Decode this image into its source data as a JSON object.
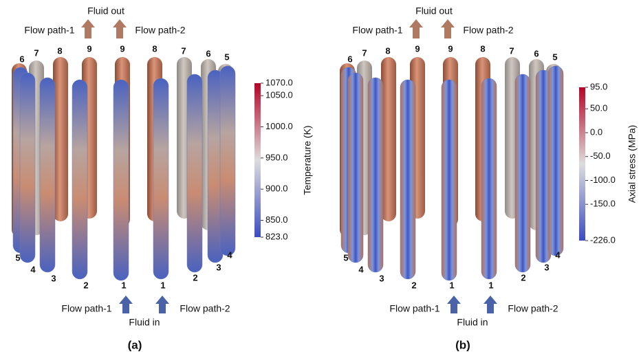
{
  "panels": [
    {
      "label": "(a)",
      "top": {
        "fluid": "Fluid out",
        "path1": "Flow path-1",
        "path2": "Flow path-2"
      },
      "bottom": {
        "fluid": "Fluid in",
        "path1": "Flow path-1",
        "path2": "Flow path-2"
      },
      "tube_numbers_top": [
        6,
        7,
        8,
        9,
        9,
        8,
        7,
        6,
        5
      ],
      "tube_numbers_bottom": [
        5,
        4,
        3,
        2,
        1,
        1,
        2,
        3,
        4
      ],
      "colorbar": {
        "title": "Temperature (K)",
        "ticks": [
          {
            "value": 1070,
            "label": "1070.0"
          },
          {
            "value": 1050,
            "label": "1050.0"
          },
          {
            "value": 1000,
            "label": "1000.0"
          },
          {
            "value": 950,
            "label": "950.0"
          },
          {
            "value": 900,
            "label": "900.0"
          },
          {
            "value": 850,
            "label": "850.0"
          },
          {
            "value": 823,
            "label": "823.0"
          }
        ]
      }
    },
    {
      "label": "(b)",
      "top": {
        "fluid": "Fluid out",
        "path1": "Flow path-1",
        "path2": "Flow path-2"
      },
      "bottom": {
        "fluid": "Fluid in",
        "path1": "Flow path-1",
        "path2": "Flow path-2"
      },
      "tube_numbers_top": [
        6,
        7,
        8,
        9,
        9,
        8,
        7,
        6,
        5
      ],
      "tube_numbers_bottom": [
        5,
        4,
        3,
        2,
        1,
        1,
        2,
        3,
        4
      ],
      "colorbar": {
        "title": "Axial stress (MPa)",
        "ticks": [
          {
            "value": 95,
            "label": "95.0"
          },
          {
            "value": 50,
            "label": "50.0"
          },
          {
            "value": 0,
            "label": "0.0"
          },
          {
            "value": -50,
            "label": "-50.0"
          },
          {
            "value": -100,
            "label": "-100.0"
          },
          {
            "value": -150,
            "label": "-150.0"
          },
          {
            "value": -226,
            "label": "-226.0"
          }
        ]
      }
    }
  ]
}
